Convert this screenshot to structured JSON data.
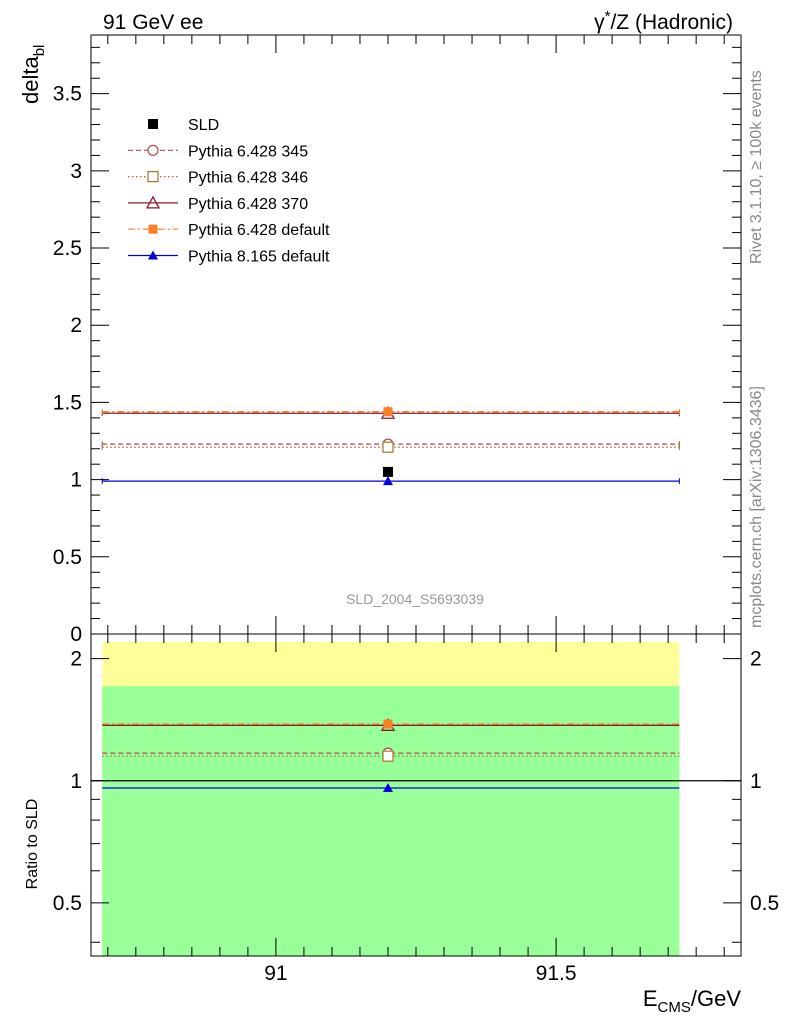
{
  "header": {
    "left": "91 GeV ee",
    "right_prefix": "γ",
    "right_sup": "*",
    "right_suffix": "/Z (Hadronic)"
  },
  "side_labels": {
    "rivet": "Rivet 3.1.10, ≥ 100k events",
    "mcplots": "mcplots.cern.ch [arXiv:1306.3436]"
  },
  "watermark": "SLD_2004_S5693039",
  "colors": {
    "sld": "#000000",
    "p345": "#b5474f",
    "p346": "#a0762b",
    "p370": "#8b1a2b",
    "p6def": "#ff7f27",
    "p8def": "#0000dd",
    "band_yellow": "#ffff99",
    "band_green": "#99ff99"
  },
  "chart_data": [
    {
      "type": "scatter",
      "panel": "main",
      "ylabel_main": "delta",
      "ylabel_sub": "bl",
      "xlim": [
        90.67,
        91.83
      ],
      "ylim": [
        0,
        3.88
      ],
      "yticks": [
        0,
        0.5,
        1,
        1.5,
        2,
        2.5,
        3,
        3.5
      ],
      "ytick_labels": [
        "0",
        "0.5",
        "1",
        "1.5",
        "2",
        "2.5",
        "3",
        "3.5"
      ],
      "x_range": [
        90.69,
        91.72
      ],
      "x_point": 91.2,
      "series": [
        {
          "name": "SLD",
          "value": 1.05,
          "style": "data"
        },
        {
          "name": "Pythia 6.428 345",
          "value": 1.23,
          "style": "dashed",
          "marker": "circle-open"
        },
        {
          "name": "Pythia 6.428 346",
          "value": 1.21,
          "style": "dotted",
          "marker": "square-open"
        },
        {
          "name": "Pythia 6.428 370",
          "value": 1.43,
          "style": "solid",
          "marker": "triangle-open"
        },
        {
          "name": "Pythia 6.428 default",
          "value": 1.44,
          "style": "dashdot",
          "marker": "square-filled"
        },
        {
          "name": "Pythia 8.165 default",
          "value": 0.99,
          "style": "solid",
          "marker": "triangle-filled"
        }
      ]
    },
    {
      "type": "scatter",
      "panel": "ratio",
      "ylabel": "Ratio to SLD",
      "xlabel_main": "E",
      "xlabel_sub": "CMS",
      "xlabel_suffix": "/GeV",
      "log_y": true,
      "ylim": [
        0.37,
        2.3
      ],
      "yticks": [
        0.5,
        1,
        2
      ],
      "ytick_labels": [
        "0.5",
        "1",
        "2"
      ],
      "xticks": [
        91,
        91.5
      ],
      "xtick_labels": [
        "91",
        "91.5"
      ],
      "band_yellow": [
        0.37,
        2.2
      ],
      "band_green": [
        0.37,
        1.71
      ],
      "series": [
        {
          "name": "Pythia 6.428 345",
          "value": 1.17
        },
        {
          "name": "Pythia 6.428 346",
          "value": 1.15
        },
        {
          "name": "Pythia 6.428 370",
          "value": 1.37
        },
        {
          "name": "Pythia 6.428 default",
          "value": 1.38
        },
        {
          "name": "Pythia 8.165 default",
          "value": 0.96
        }
      ]
    }
  ]
}
